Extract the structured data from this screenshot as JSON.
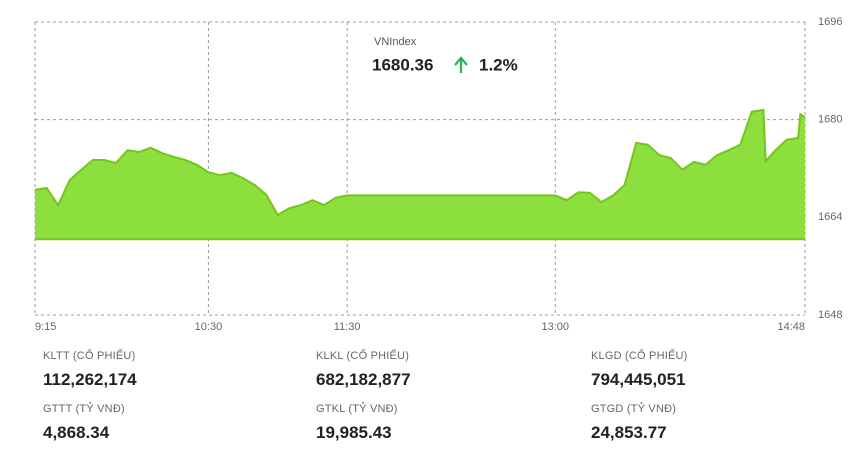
{
  "chart_data": {
    "type": "area",
    "title": "VNIndex",
    "last_value": "1680.36",
    "change": "1.2%",
    "x": [
      "9:15",
      "9:20",
      "9:25",
      "9:30",
      "9:35",
      "9:40",
      "9:45",
      "9:50",
      "9:55",
      "10:00",
      "10:05",
      "10:10",
      "10:15",
      "10:20",
      "10:25",
      "10:30",
      "10:35",
      "10:40",
      "10:45",
      "10:50",
      "10:55",
      "11:00",
      "11:05",
      "11:10",
      "11:15",
      "11:20",
      "11:25",
      "11:30",
      "13:00",
      "13:05",
      "13:10",
      "13:15",
      "13:20",
      "13:25",
      "13:30",
      "13:35",
      "13:40",
      "13:45",
      "13:50",
      "13:55",
      "14:00",
      "14:05",
      "14:10",
      "14:15",
      "14:20",
      "14:25",
      "14:30",
      "14:31",
      "14:35",
      "14:40",
      "14:45",
      "14:46",
      "14:48"
    ],
    "values": [
      1668.5,
      1668.8,
      1666,
      1670.1,
      1671.8,
      1673.4,
      1673.4,
      1672.9,
      1675,
      1674.7,
      1675.4,
      1674.5,
      1673.9,
      1673.4,
      1672.6,
      1671.4,
      1670.9,
      1671.3,
      1670.4,
      1669.3,
      1667.7,
      1664.4,
      1665.5,
      1666,
      1666.8,
      1666,
      1667.2,
      1667.6,
      1667.6,
      1666.8,
      1668.1,
      1668,
      1666.5,
      1667.6,
      1669.3,
      1676.2,
      1675.9,
      1674.2,
      1673.7,
      1671.8,
      1673.1,
      1672.6,
      1674.2,
      1675,
      1675.9,
      1681.3,
      1681.6,
      1673.2,
      1674.9,
      1676.7,
      1677,
      1680.9,
      1680.36
    ],
    "baseline": 1660.4,
    "color": "#8ddf3e",
    "line_color": "#74c51c",
    "xlim": [
      "9:15",
      "14:48"
    ],
    "xticks": [
      "9:15",
      "10:30",
      "11:30",
      "13:00",
      "14:48"
    ],
    "ylim": [
      1648,
      1696
    ],
    "yticks": [
      1648,
      1664,
      1680,
      1696
    ],
    "grid": true
  },
  "stats": [
    {
      "label": "KLTT (CỔ PHIẾU)",
      "value": "112,262,174"
    },
    {
      "label": "KLKL (CỔ PHIẾU)",
      "value": "682,182,877"
    },
    {
      "label": "KLGD (CỔ PHIẾU)",
      "value": "794,445,051"
    },
    {
      "label": "GTTT (TỶ VNĐ)",
      "value": "4,868.34"
    },
    {
      "label": "GTKL (TỶ VNĐ)",
      "value": "19,985.43"
    },
    {
      "label": "GTGD (TỶ VNĐ)",
      "value": "24,853.77"
    }
  ]
}
